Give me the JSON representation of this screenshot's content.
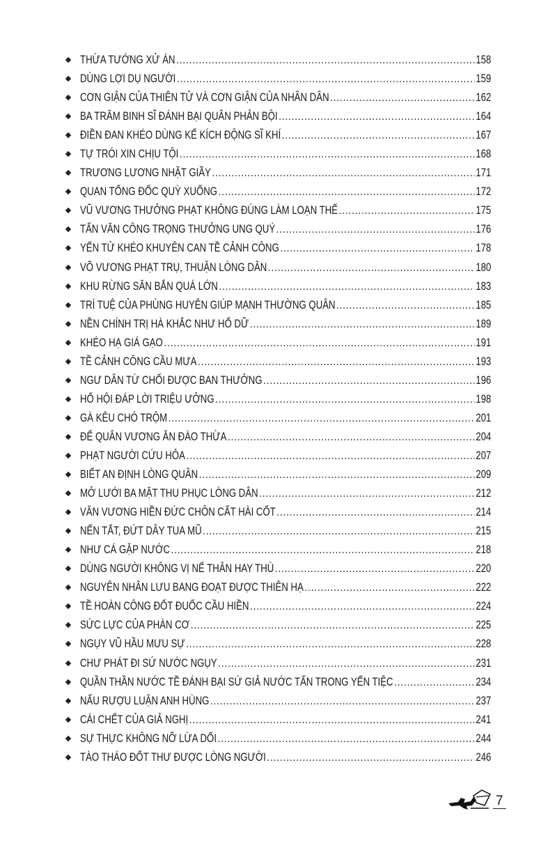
{
  "toc": [
    {
      "title": "THỪA TƯỚNG XỬ ÁN",
      "page": "158"
    },
    {
      "title": "DÙNG LỢI DỤ NGƯỜI",
      "page": "159"
    },
    {
      "title": "CƠN GIẬN CỦA THIÊN TỬ VÀ CƠN GIẬN CỦA NHÂN DÂN",
      "page": "162"
    },
    {
      "title": "BA TRĂM BINH SĨ ĐÁNH BẠI QUÂN PHẢN BỘI",
      "page": "164"
    },
    {
      "title": "ĐIỀN ĐAN KHÉO DÙNG KẾ KÍCH ĐỘNG SĨ KHÍ",
      "page": "167"
    },
    {
      "title": "TỰ TRÓI XIN CHỊU TỘI",
      "page": "168"
    },
    {
      "title": "TRƯƠNG LƯƠNG NHẶT GIẦY",
      "page": "171"
    },
    {
      "title": "QUAN TỔNG ĐỐC QUỲ XUỐNG",
      "page": "172"
    },
    {
      "title": "VŨ VƯƠNG THƯỞNG PHẠT KHÔNG ĐÚNG LÀM LOẠN THẾ",
      "page": "175"
    },
    {
      "title": "TẤN VĂN CÔNG TRỌNG THƯỞNG UNG QUÝ",
      "page": "176"
    },
    {
      "title": "YẾN TỬ KHÉO KHUYÊN CAN TỀ CẢNH CÔNG",
      "page": "178"
    },
    {
      "title": "VÕ VƯƠNG PHẠT TRỤ, THUẬN LÒNG DÂN",
      "page": "180"
    },
    {
      "title": "KHU RỪNG SĂN BẮN QUÁ LỚN",
      "page": "183"
    },
    {
      "title": "TRÍ TUỆ CỦA PHÙNG HUYÊN GIÚP MẠNH THƯỜNG QUÂN",
      "page": "185"
    },
    {
      "title": "NỀN CHÍNH TRỊ HÀ KHẮC NHƯ HỔ DỮ",
      "page": "189"
    },
    {
      "title": "KHÉO HẠ GIÁ GẠO",
      "page": "191"
    },
    {
      "title": "TỀ CẢNH CÔNG CẦU MƯA",
      "page": "193"
    },
    {
      "title": "NGƯ DÂN TỪ CHỐI ĐƯỢC BAN THƯỞNG",
      "page": "196"
    },
    {
      "title": "HỔ HỘI ĐÁP LỜI TRIỆU ƯỞNG",
      "page": "198"
    },
    {
      "title": "GÀ KÊU CHÓ TRỘM",
      "page": "201"
    },
    {
      "title": "ĐỂ QUÂN VƯƠNG ĂN ĐÀO THỪA",
      "page": "204"
    },
    {
      "title": "PHẠT NGƯỜI CỨU HỎA",
      "page": "207"
    },
    {
      "title": "BIẾT AN ĐỊNH LÒNG QUÂN",
      "page": "209"
    },
    {
      "title": "MỞ LƯỚI BA MẶT THU PHỤC LÒNG DÂN",
      "page": "212"
    },
    {
      "title": "VĂN VƯƠNG HIỀN ĐỨC CHÔN CẤT HÀI CỐT",
      "page": "214"
    },
    {
      "title": "NẾN TẮT, ĐỨT DÂY TUA MŨ",
      "page": "215"
    },
    {
      "title": "NHƯ CÁ GẶP NƯỚC",
      "page": "218"
    },
    {
      "title": "DÙNG NGƯỜI KHÔNG VỊ NỂ THÂN HAY THÙ",
      "page": "220"
    },
    {
      "title": "NGUYÊN NHÂN LƯU BANG ĐOẠT ĐƯỢC THIÊN HẠ",
      "page": "222"
    },
    {
      "title": "TỀ HOÀN CÔNG ĐỐT ĐUỐC CẦU HIỀN",
      "page": "224"
    },
    {
      "title": "SỨC LỰC CỦA PHÀN CƠ",
      "page": "225"
    },
    {
      "title": "NGỤY VŨ HẦU MƯU SỰ",
      "page": "228"
    },
    {
      "title": "CHƯ PHÁT ĐI SỨ NƯỚC NGỤY",
      "page": "231"
    },
    {
      "title": "QUẦN THẦN NƯỚC TỀ ĐÁNH BẠI SỨ GIẢ NƯỚC TẤN TRONG YẾN TIỆC",
      "page": "234"
    },
    {
      "title": "NẤU RƯỢU LUẬN ANH HÙNG",
      "page": "237"
    },
    {
      "title": "CÁI CHẾT CỦA GIẢ NGHỊ",
      "page": "241"
    },
    {
      "title": "SỰ THỰC KHÔNG NỠ LỪA DỐI",
      "page": "244"
    },
    {
      "title": "TÀO THÁO ĐỐT THƯ ĐƯỢC LÒNG NGƯỜI",
      "page": "246"
    }
  ],
  "footer": {
    "page_number": "7",
    "ornament_icon": "horse-rider-ornament"
  }
}
